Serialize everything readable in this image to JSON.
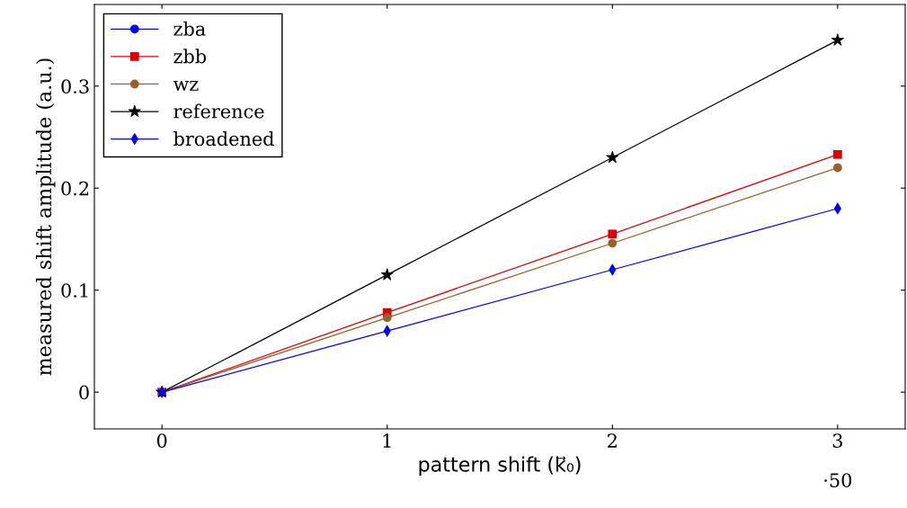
{
  "chart_data": {
    "type": "line",
    "xlabel": "pattern shift (k⃗₀)",
    "ylabel": "measured shift amplitude (a.u.)",
    "x": [
      0,
      1,
      2,
      3
    ],
    "series": [
      {
        "name": "zba",
        "color": "#0000ff",
        "marker": "circle",
        "values": [
          null,
          null,
          null,
          null
        ]
      },
      {
        "name": "zbb",
        "color": "#dd0000",
        "marker": "square",
        "values": [
          0,
          0.078,
          0.155,
          0.233
        ]
      },
      {
        "name": "wz",
        "color": "#99602e",
        "marker": "circle",
        "values": [
          0,
          0.073,
          0.146,
          0.22
        ]
      },
      {
        "name": "reference",
        "color": "#000000",
        "marker": "star",
        "values": [
          0,
          0.115,
          0.23,
          0.345
        ]
      },
      {
        "name": "broadened",
        "color": "#0000ff",
        "marker": "diamond",
        "values": [
          0,
          0.06,
          0.12,
          0.18
        ]
      }
    ],
    "xlim": [
      -0.3,
      3.3
    ],
    "xticks": [
      0,
      1,
      2,
      3
    ],
    "ylim": [
      -0.036,
      0.38
    ],
    "yticks": [
      0,
      0.1,
      0.2,
      0.3
    ],
    "grid": false,
    "legend": "top left",
    "line_style": "solid",
    "annotations": [
      "·50"
    ]
  }
}
